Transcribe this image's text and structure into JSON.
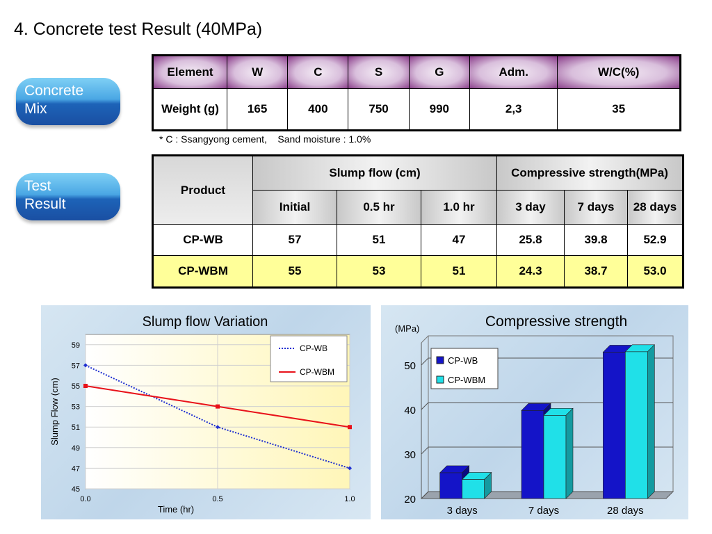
{
  "title": "4. Concrete test Result (40MPa)",
  "pills": {
    "mix": [
      "Concrete",
      "Mix"
    ],
    "test": [
      "Test",
      "Result"
    ]
  },
  "mix_table": {
    "headers": [
      "Element",
      "W",
      "C",
      "S",
      "G",
      "Adm.",
      "W/C(%)"
    ],
    "row_label": "Weight (g)",
    "values": [
      "165",
      "400",
      "750",
      "990",
      "2,3",
      "35"
    ]
  },
  "note": "* C : Ssangyong cement,    Sand moisture : 1.0%",
  "test_table": {
    "product_header": "Product",
    "slump_header": "Slump flow (cm)",
    "strength_header": "Compressive strength(MPa)",
    "sub_headers": [
      "Initial",
      "0.5 hr",
      "1.0 hr",
      "3 day",
      "7 days",
      "28 days"
    ],
    "rows": [
      {
        "product": "CP-WB",
        "values": [
          "57",
          "51",
          "47",
          "25.8",
          "39.8",
          "52.9"
        ]
      },
      {
        "product": "CP-WBM",
        "values": [
          "55",
          "53",
          "51",
          "24.3",
          "38.7",
          "53.0"
        ]
      }
    ]
  },
  "colors": {
    "wb_line": "#1f2fd1",
    "wbm_line": "#e8121a",
    "wb_bar": "#1414c8",
    "wbm_bar": "#20e0e8",
    "highlight_row": "#ffff99"
  },
  "chart_data": [
    {
      "type": "line",
      "title": "Slump flow  Variation",
      "xlabel": "Time (hr)",
      "ylabel": "Slump Flow (cm)",
      "x": [
        0.0,
        0.5,
        1.0
      ],
      "x_tick_labels": [
        "0.0",
        "0.5",
        "1.0"
      ],
      "y_ticks": [
        45,
        47,
        49,
        51,
        53,
        55,
        57,
        59
      ],
      "ylim": [
        45,
        60
      ],
      "xlim": [
        0,
        1
      ],
      "legend_position": "top-right",
      "series": [
        {
          "name": "CP-WB",
          "values": [
            57,
            51,
            47
          ]
        },
        {
          "name": "CP-WBM",
          "values": [
            55,
            53,
            51
          ]
        }
      ]
    },
    {
      "type": "bar",
      "title": "Compressive strength",
      "ylabel": "(MPa)",
      "categories": [
        "3 days",
        "7 days",
        "28 days"
      ],
      "y_ticks": [
        20,
        30,
        40,
        50
      ],
      "ylim": [
        20,
        55
      ],
      "legend_position": "top-left",
      "series": [
        {
          "name": "CP-WB",
          "values": [
            25.8,
            39.8,
            52.9
          ]
        },
        {
          "name": "CP-WBM",
          "values": [
            24.3,
            38.7,
            53.0
          ]
        }
      ]
    }
  ]
}
